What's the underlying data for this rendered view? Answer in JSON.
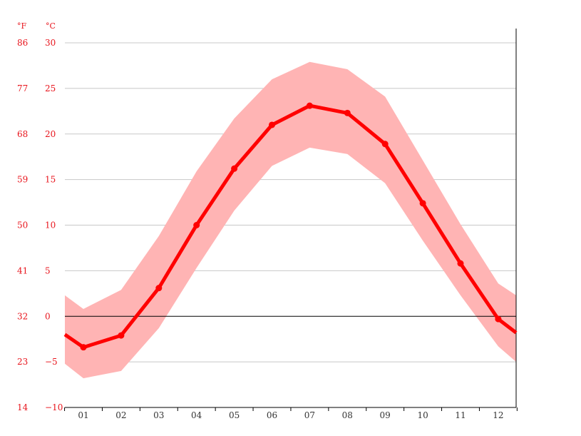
{
  "chart_data": {
    "type": "line",
    "title": "",
    "units": {
      "fahrenheit": "°F",
      "celsius": "°C"
    },
    "categories": [
      "01",
      "02",
      "03",
      "04",
      "05",
      "06",
      "07",
      "08",
      "09",
      "10",
      "11",
      "12"
    ],
    "ylim": [
      -10,
      30
    ],
    "y_ticks_c": [
      "30",
      "25",
      "20",
      "15",
      "10",
      "5",
      "0",
      "−5",
      "−10"
    ],
    "y_ticks_f": [
      "86",
      "77",
      "68",
      "59",
      "50",
      "41",
      "32",
      "23",
      "14"
    ],
    "y_tick_values": [
      30,
      25,
      20,
      15,
      10,
      5,
      0,
      -5,
      -10
    ],
    "grid": true,
    "edge_values": {
      "left": {
        "mean": -2,
        "min": -5.2,
        "max": 2.3
      },
      "right": {
        "mean": -1.8,
        "min": -5,
        "max": 2.3
      }
    },
    "series": [
      {
        "values": [
          -3.4,
          -2.1,
          3.1,
          10.0,
          16.2,
          21.0,
          23.1,
          22.3,
          18.9,
          12.4,
          5.8,
          -0.3
        ]
      },
      {
        "kind": "min",
        "values": [
          -6.8,
          -6.0,
          -1.3,
          5.3,
          11.6,
          16.5,
          18.5,
          17.8,
          14.6,
          8.3,
          2.3,
          -3.3
        ]
      },
      {
        "kind": "max",
        "values": [
          0.8,
          2.9,
          8.8,
          15.9,
          21.7,
          26.0,
          27.9,
          27.1,
          24.1,
          17.1,
          10.1,
          3.6
        ]
      }
    ],
    "colors": {
      "line": "#ff0000",
      "band": "#ffb4b4",
      "tick_text": "#e8141c",
      "grid": "#c8c8c8",
      "zero_line": "#000000"
    }
  }
}
